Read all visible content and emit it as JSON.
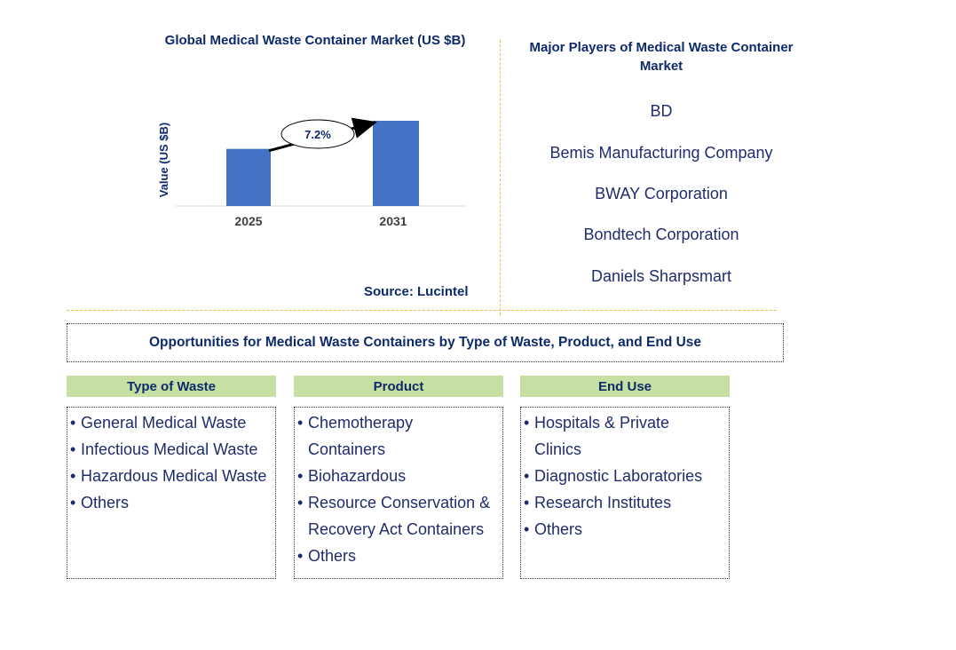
{
  "chart_data": {
    "type": "bar",
    "title": "Global Medical Waste Container Market (US $B)",
    "ylabel": "Value (US $B)",
    "xlabel": "",
    "categories": [
      "2025",
      "2031"
    ],
    "values": [
      0.67,
      1.0
    ],
    "annotation": "7.2%",
    "bar_color": "#4472c4"
  },
  "source": "Source: Lucintel",
  "players": {
    "title": "Major Players of Medical Waste Container Market",
    "items": [
      "BD",
      "Bemis Manufacturing Company",
      "BWAY Corporation",
      "Bondtech Corporation",
      "Daniels Sharpsmart"
    ]
  },
  "opportunities": {
    "title": "Opportunities for Medical Waste Containers by Type of Waste, Product, and End Use",
    "columns": [
      {
        "heading": "Type of Waste",
        "items": [
          "General Medical Waste",
          "Infectious Medical Waste",
          "Hazardous Medical Waste",
          "Others"
        ]
      },
      {
        "heading": "Product",
        "items": [
          "Chemotherapy Containers",
          "Biohazardous",
          "Resource Conservation & Recovery Act Containers",
          "Others"
        ]
      },
      {
        "heading": "End Use",
        "items": [
          "Hospitals & Private Clinics",
          "Diagnostic Laboratories",
          "Research Institutes",
          "Others"
        ]
      }
    ],
    "header_color": "#c6e0a4"
  }
}
